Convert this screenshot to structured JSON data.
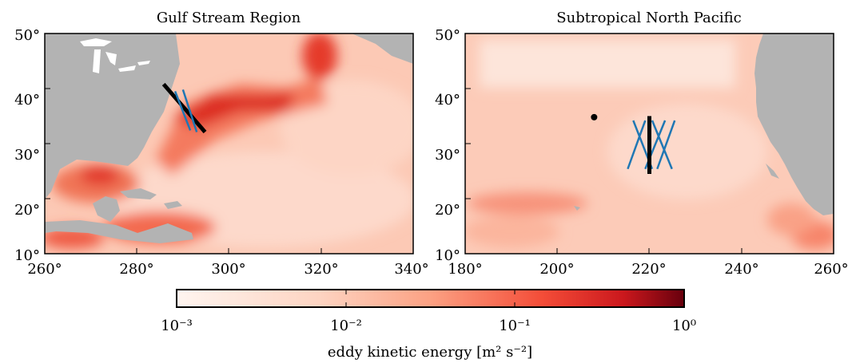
{
  "chart_data": [
    {
      "type": "heatmap",
      "title": "Gulf Stream Region",
      "xlim": [
        260,
        340
      ],
      "ylim": [
        10,
        50
      ],
      "xticks": [
        "260°",
        "280°",
        "300°",
        "320°",
        "340°"
      ],
      "yticks": [
        "10°",
        "20°",
        "30°",
        "40°",
        "50°"
      ],
      "land_color": "#b3b3b3",
      "lines": [
        {
          "color": "#000000",
          "points": [
            [
              285.8,
              40.8
            ],
            [
              294.8,
              32.1
            ]
          ]
        },
        {
          "color": "#1f77b4",
          "points": [
            [
              288.3,
              39.5
            ],
            [
              291.6,
              32.4
            ]
          ]
        },
        {
          "color": "#1f77b4",
          "points": [
            [
              290.0,
              39.8
            ],
            [
              293.0,
              32.1
            ]
          ]
        }
      ],
      "points": []
    },
    {
      "type": "heatmap",
      "title": "Subtropical North Pacific",
      "xlim": [
        180,
        260
      ],
      "ylim": [
        10,
        50
      ],
      "xticks": [
        "180°",
        "200°",
        "220°",
        "240°",
        "260°"
      ],
      "yticks": [
        "10°",
        "20°",
        "30°",
        "40°",
        "50°"
      ],
      "land_color": "#b3b3b3",
      "lines": [
        {
          "color": "#1f77b4",
          "points": [
            [
              215.3,
              25.4
            ],
            [
              219.1,
              34.2
            ]
          ]
        },
        {
          "color": "#1f77b4",
          "points": [
            [
              216.5,
              34.2
            ],
            [
              220.6,
              25.4
            ]
          ]
        },
        {
          "color": "#1f77b4",
          "points": [
            [
              219.1,
              25.4
            ],
            [
              223.4,
              34.2
            ]
          ]
        },
        {
          "color": "#1f77b4",
          "points": [
            [
              220.6,
              34.2
            ],
            [
              224.9,
              25.4
            ]
          ]
        },
        {
          "color": "#1f77b4",
          "points": [
            [
              221.7,
              25.4
            ],
            [
              225.5,
              34.2
            ]
          ]
        },
        {
          "color": "#000000",
          "points": [
            [
              220.0,
              24.5
            ],
            [
              220.0,
              35.0
            ]
          ]
        }
      ],
      "points": [
        {
          "color": "#000000",
          "x": 208,
          "y": 34.8
        }
      ]
    }
  ],
  "colorbar": {
    "label": "eddy kinetic energy [m² s⁻²]",
    "scale": "log",
    "range": [
      0.001,
      1
    ],
    "tick_labels": [
      "10⁻³",
      "10⁻²",
      "10⁻¹",
      "10⁰"
    ],
    "colors": [
      "#fff5f0",
      "#fcbba1",
      "#fb6a4a",
      "#cb181d",
      "#67000d"
    ]
  }
}
